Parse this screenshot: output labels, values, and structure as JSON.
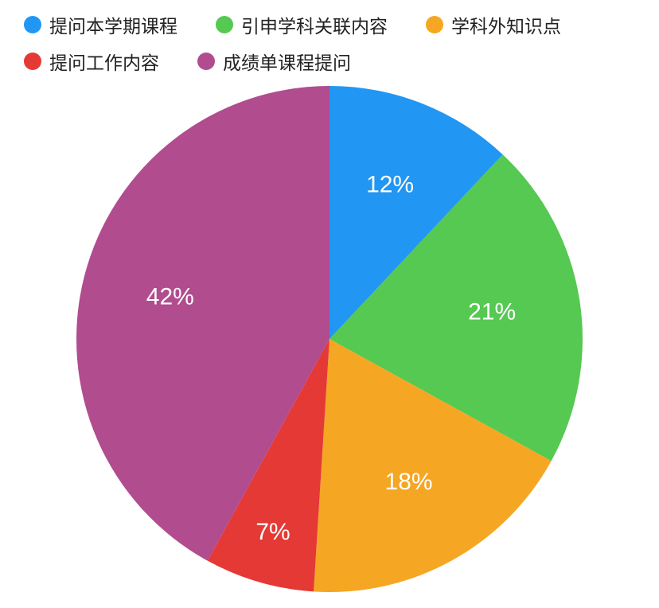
{
  "chart": {
    "type": "pie",
    "background_color": "#ffffff",
    "legend_fontsize": 23,
    "label_fontsize": 30,
    "label_color": "#ffffff",
    "pie_radius": 318,
    "slices": [
      {
        "label": "提问本学期课程",
        "value": 12,
        "color": "#2196f3",
        "display": "12%"
      },
      {
        "label": "引申学科关联内容",
        "value": 21,
        "color": "#55c951",
        "display": "21%"
      },
      {
        "label": "学科外知识点",
        "value": 18,
        "color": "#f5a623",
        "display": "18%"
      },
      {
        "label": "提问工作内容",
        "value": 7,
        "color": "#e53935",
        "display": "7%"
      },
      {
        "label": "成绩单课程提问",
        "value": 42,
        "color": "#b14c8f",
        "display": "42%"
      }
    ]
  }
}
